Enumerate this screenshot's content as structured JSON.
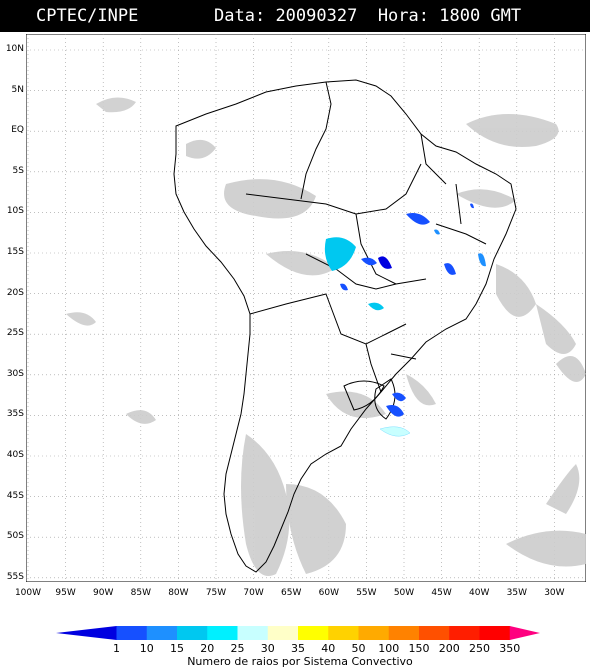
{
  "header": {
    "source": "CPTEC/INPE",
    "date_label": "Data:",
    "date": "20090327",
    "hour_label": "Hora:",
    "hour": "1800 GMT"
  },
  "map": {
    "lat_ticks": [
      "10N",
      "5N",
      "EQ",
      "5S",
      "10S",
      "15S",
      "20S",
      "25S",
      "30S",
      "35S",
      "40S",
      "45S",
      "50S",
      "55S"
    ],
    "lon_ticks": [
      "100W",
      "95W",
      "90W",
      "85W",
      "80W",
      "75W",
      "70W",
      "65W",
      "60W",
      "55W",
      "50W",
      "45W",
      "40W",
      "35W",
      "30W"
    ],
    "grid": true,
    "colors": {
      "land_border": "#000000",
      "cloud": "#c8c8c8",
      "grid": "#999999"
    }
  },
  "colorbar": {
    "labels": [
      "1",
      "10",
      "15",
      "20",
      "25",
      "30",
      "35",
      "40",
      "50",
      "100",
      "150",
      "200",
      "250",
      "350"
    ],
    "colors": [
      "#0000e0",
      "#1650ff",
      "#1e90ff",
      "#00c8f0",
      "#00f0ff",
      "#c8ffff",
      "#ffffc8",
      "#ffff00",
      "#ffd200",
      "#ffaa00",
      "#ff8200",
      "#ff5000",
      "#ff1e00",
      "#ff0000",
      "#ff0080"
    ],
    "title": "Numero de raios por Sistema Convectivo"
  }
}
